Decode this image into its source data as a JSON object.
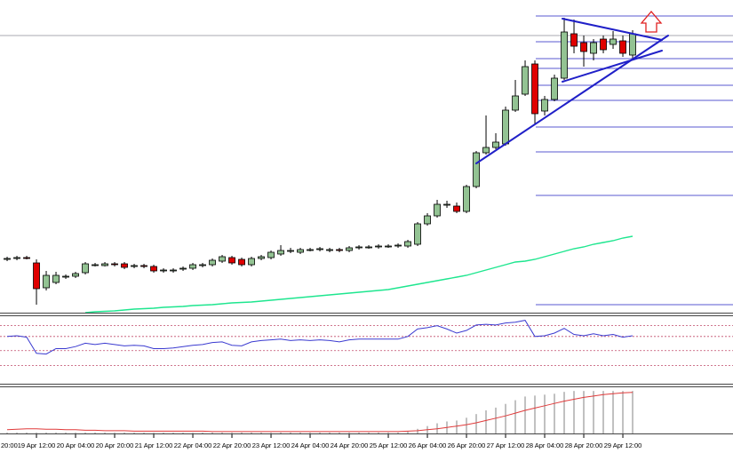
{
  "chart_data": [
    {
      "type": "candlestick",
      "xlim": [
        -0.73,
        74.27
      ],
      "ylim": [
        0,
        352
      ],
      "open": [
        60,
        61,
        62,
        56,
        28,
        34,
        40,
        41,
        45,
        54,
        53,
        55,
        55,
        52,
        53,
        52,
        48,
        47,
        49,
        50,
        53,
        54,
        58,
        62,
        60,
        54,
        61,
        62,
        66,
        69,
        68,
        71,
        71,
        70,
        71,
        70,
        73,
        74,
        74,
        75,
        75,
        75,
        77,
        100,
        109,
        122,
        120,
        114,
        142,
        180,
        186,
        190,
        228,
        246,
        280,
        227,
        240,
        264,
        314,
        304,
        292,
        308,
        302,
        306,
        290
      ],
      "high": [
        63,
        64,
        64,
        60,
        47,
        46,
        43,
        46,
        57,
        56,
        57,
        57,
        57,
        55,
        55,
        54,
        50,
        50,
        52,
        56,
        56,
        61,
        65,
        64,
        62,
        63,
        65,
        70,
        76,
        73,
        73,
        73,
        74,
        73,
        73,
        75,
        76,
        76,
        77,
        77,
        78,
        82,
        102,
        112,
        127,
        126,
        124,
        144,
        182,
        222,
        202,
        232,
        262,
        284,
        284,
        244,
        268,
        332,
        330,
        312,
        308,
        312,
        317,
        312,
        318
      ],
      "low": [
        58,
        59,
        60,
        9,
        25,
        32,
        38,
        39,
        43,
        52,
        52,
        52,
        49,
        50,
        50,
        45,
        45,
        45,
        47,
        48,
        51,
        52,
        56,
        54,
        52,
        52,
        59,
        60,
        64,
        67,
        66,
        69,
        69,
        68,
        68,
        68,
        71,
        72,
        72,
        73,
        73,
        73,
        75,
        98,
        107,
        118,
        112,
        112,
        140,
        178,
        184,
        188,
        226,
        244,
        212,
        222,
        238,
        262,
        292,
        277,
        284,
        292,
        297,
        288,
        286
      ],
      "close": [
        61,
        62,
        61,
        27,
        42,
        42,
        41,
        44,
        55,
        54,
        55,
        54,
        51,
        53,
        52,
        47,
        48,
        48,
        50,
        54,
        54,
        59,
        63,
        56,
        54,
        61,
        63,
        68,
        70,
        70,
        71,
        71,
        72,
        71,
        70,
        73,
        74,
        74,
        75,
        75,
        76,
        80,
        100,
        109,
        122,
        122,
        114,
        142,
        180,
        186,
        192,
        228,
        244,
        277,
        224,
        240,
        264,
        316,
        300,
        294,
        304,
        296,
        308,
        292,
        314
      ],
      "up_color": "#93c393",
      "down_color": "#e00000",
      "moving_average": [
        null,
        null,
        null,
        null,
        null,
        null,
        null,
        null,
        0,
        1,
        1.5,
        2,
        3,
        4,
        4.5,
        5,
        6,
        6.5,
        7,
        8,
        8.5,
        9,
        10,
        11,
        11.5,
        12,
        13,
        14,
        15,
        16,
        17,
        18,
        19,
        20,
        21,
        22,
        23,
        24,
        25,
        26,
        28,
        30,
        32,
        34,
        36,
        38,
        40,
        42,
        45,
        48,
        51,
        54,
        57,
        58,
        60,
        63,
        66,
        69,
        72,
        74,
        77,
        79,
        81,
        84,
        86
      ],
      "ma_color": "#1ee68f",
      "hline": 312,
      "hline_color": "#a8a8b0",
      "levels": [
        334,
        305,
        286,
        275,
        256,
        239,
        209,
        181,
        132,
        9
      ],
      "level_color": "#5858d0"
    },
    {
      "type": "line",
      "ylim": [
        0,
        100
      ],
      "values": [
        70,
        71,
        69,
        45,
        44,
        52,
        52,
        55,
        60,
        58,
        60,
        58,
        56,
        57,
        56,
        52,
        52,
        53,
        55,
        57,
        58,
        61,
        62,
        57,
        56,
        62,
        64,
        65,
        66,
        64,
        65,
        64,
        65,
        64,
        62,
        65,
        66,
        66,
        66,
        66,
        66,
        70,
        81,
        83,
        86,
        81,
        75,
        79,
        87,
        88,
        87,
        90,
        91,
        94,
        70,
        71,
        75,
        82,
        73,
        71,
        74,
        71,
        73,
        69,
        71
      ],
      "color": "#3a3ad0",
      "levels": [
        86,
        70,
        49,
        27
      ],
      "level_color": "#c04a6a"
    },
    {
      "type": "macd",
      "ylim": [
        0,
        100
      ],
      "values": [
        2,
        2,
        2,
        2,
        2,
        2,
        2,
        2,
        2,
        2,
        2,
        2,
        2,
        2,
        2,
        2,
        2,
        2,
        2,
        2,
        2,
        2,
        2,
        2,
        2,
        2,
        2,
        2,
        2,
        2,
        2,
        2,
        2,
        2,
        2,
        2,
        2,
        2,
        2,
        2,
        2,
        4,
        10,
        16,
        22,
        26,
        28,
        34,
        42,
        50,
        56,
        64,
        72,
        80,
        82,
        84,
        86,
        90,
        92,
        92,
        92,
        92,
        92,
        92,
        92
      ],
      "color": "#c0c0c0",
      "signal": [
        8,
        9,
        10,
        10,
        9,
        9,
        8,
        8,
        7,
        7,
        6,
        6,
        6,
        5,
        5,
        5,
        5,
        5,
        5,
        5,
        5,
        4,
        4,
        4,
        4,
        4,
        4,
        4,
        4,
        4,
        4,
        4,
        4,
        4,
        4,
        4,
        4,
        4,
        4,
        4,
        4,
        5,
        6,
        8,
        10,
        13,
        16,
        19,
        23,
        28,
        33,
        38,
        44,
        50,
        55,
        60,
        65,
        70,
        74,
        78,
        81,
        84,
        86,
        88,
        89
      ],
      "signal_color": "#e03a3a",
      "xticks": [
        {
          "value": -1,
          "label": "20:00"
        },
        {
          "value": 3,
          "label": "19 Apr 12:00"
        },
        {
          "value": 7,
          "label": "20 Apr 04:00"
        },
        {
          "value": 11,
          "label": "20 Apr 20:00"
        },
        {
          "value": 15,
          "label": "21 Apr 12:00"
        },
        {
          "value": 19,
          "label": "22 Apr 04:00"
        },
        {
          "value": 23,
          "label": "22 Apr 20:00"
        },
        {
          "value": 27,
          "label": "23 Apr 12:00"
        },
        {
          "value": 31,
          "label": "24 Apr 04:00"
        },
        {
          "value": 35,
          "label": "24 Apr 20:00"
        },
        {
          "value": 39,
          "label": "25 Apr 12:00"
        },
        {
          "value": 43,
          "label": "26 Apr 04:00"
        },
        {
          "value": 47,
          "label": "26 Apr 20:00"
        },
        {
          "value": 51,
          "label": "27 Apr 12:00"
        },
        {
          "value": 55,
          "label": "28 Apr 04:00"
        },
        {
          "value": 59,
          "label": "28 Apr 20:00"
        },
        {
          "value": 63,
          "label": "29 Apr 12:00"
        }
      ]
    }
  ]
}
